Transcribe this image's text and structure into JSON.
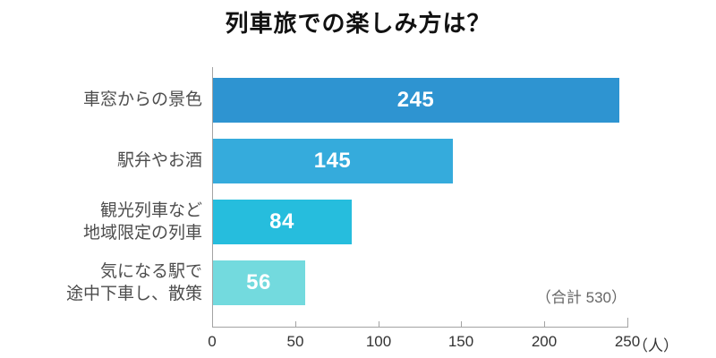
{
  "title": "列車旅での楽しみ方は？",
  "chart_data": {
    "type": "bar",
    "orientation": "horizontal",
    "title": "列車旅での楽しみ方は？",
    "categories": [
      "車窓からの景色",
      "駅弁やお酒",
      "観光列車など\n地域限定の列車",
      "気になる駅で\n途中下車し、散策"
    ],
    "values": [
      245,
      145,
      84,
      56
    ],
    "bar_colors": [
      "#2e94d1",
      "#35abdc",
      "#26bddd",
      "#73dade"
    ],
    "value_label_color": "#ffffff",
    "x_ticks": [
      "0",
      "50",
      "100",
      "150",
      "200",
      "250"
    ],
    "x_tick_values": [
      0,
      50,
      100,
      150,
      200,
      250
    ],
    "xlim": [
      0,
      250
    ],
    "x_unit": "（人）",
    "grid": false,
    "legend": null,
    "annotation": "（合計 530）",
    "total": 530,
    "axis_color": "#a3a3a3",
    "tick_label_color": "#333333",
    "category_label_color": "#4d4d4d"
  }
}
